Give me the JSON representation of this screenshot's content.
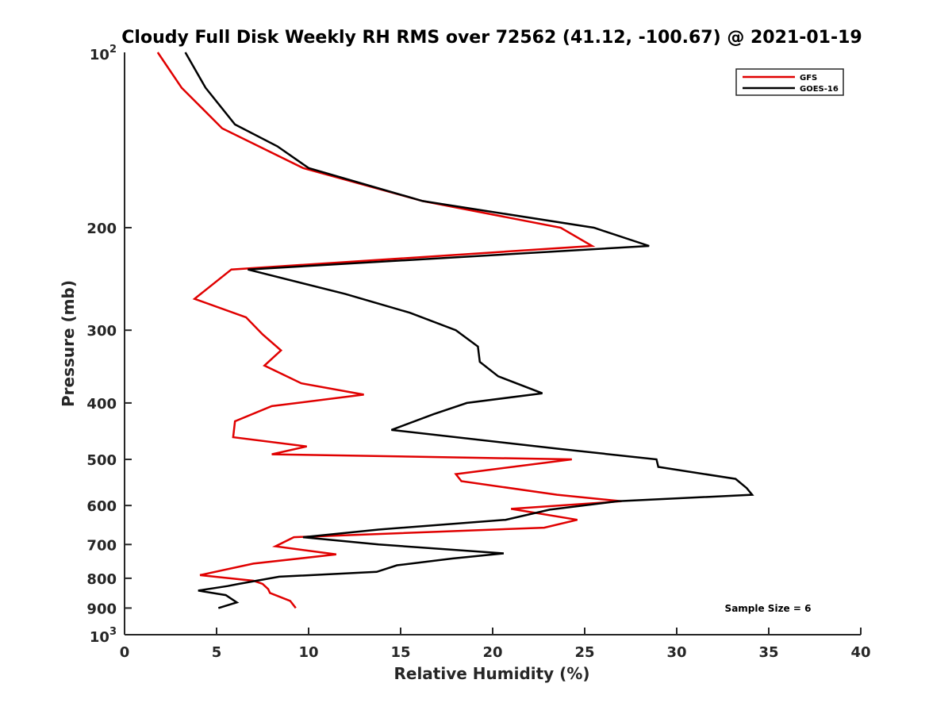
{
  "chart_data": {
    "type": "line",
    "title": "Cloudy Full Disk Weekly RH RMS over 72562 (41.12, -100.67) @ 2021-01-19",
    "xlabel": "Relative Humidity (%)",
    "ylabel": "Pressure (mb)",
    "xlim": [
      0,
      40
    ],
    "ylim": [
      100,
      1000
    ],
    "y_scale": "log",
    "y_reversed": true,
    "grid": false,
    "legend_position": "top-right",
    "x_ticks": [
      0,
      5,
      10,
      15,
      20,
      25,
      30,
      35,
      40
    ],
    "x_tick_labels": [
      "0",
      "5",
      "10",
      "15",
      "20",
      "25",
      "30",
      "35",
      "40"
    ],
    "y_ticks": [
      200,
      300,
      400,
      500,
      600,
      700,
      800,
      900
    ],
    "y_tick_labels": [
      "200",
      "300",
      "400",
      "500",
      "600",
      "700",
      "800",
      "900"
    ],
    "y_end_labels": [
      {
        "value": 100,
        "base": "10",
        "exp": "2"
      },
      {
        "value": 1000,
        "base": "10",
        "exp": "3"
      }
    ],
    "annotation": "Sample Size = 6",
    "series": [
      {
        "name": "GFS",
        "color": "#e00000",
        "points": [
          [
            1.8,
            100
          ],
          [
            3.1,
            115
          ],
          [
            5.3,
            135
          ],
          [
            9.7,
            158
          ],
          [
            16.2,
            180
          ],
          [
            23.7,
            200
          ],
          [
            25.4,
            215
          ],
          [
            5.8,
            236
          ],
          [
            3.8,
            265
          ],
          [
            6.6,
            285
          ],
          [
            7.5,
            305
          ],
          [
            8.5,
            325
          ],
          [
            7.6,
            345
          ],
          [
            9.6,
            370
          ],
          [
            13.0,
            387
          ],
          [
            8.0,
            405
          ],
          [
            6.0,
            430
          ],
          [
            5.9,
            458
          ],
          [
            9.9,
            475
          ],
          [
            8.0,
            490
          ],
          [
            24.3,
            500
          ],
          [
            18.0,
            530
          ],
          [
            18.3,
            545
          ],
          [
            23.5,
            575
          ],
          [
            27.0,
            590
          ],
          [
            21.0,
            608
          ],
          [
            24.6,
            635
          ],
          [
            22.8,
            655
          ],
          [
            9.2,
            680
          ],
          [
            8.2,
            705
          ],
          [
            11.5,
            728
          ],
          [
            7.0,
            755
          ],
          [
            4.1,
            790
          ],
          [
            7.0,
            808
          ],
          [
            7.5,
            818
          ],
          [
            7.8,
            835
          ],
          [
            7.9,
            848
          ],
          [
            9.0,
            875
          ],
          [
            9.3,
            900
          ]
        ]
      },
      {
        "name": "GOES-16",
        "color": "#000000",
        "points": [
          [
            3.3,
            100
          ],
          [
            4.4,
            115
          ],
          [
            6.0,
            133
          ],
          [
            8.3,
            145
          ],
          [
            10.0,
            158
          ],
          [
            16.2,
            180
          ],
          [
            25.5,
            200
          ],
          [
            28.5,
            215
          ],
          [
            6.7,
            236
          ],
          [
            12.0,
            260
          ],
          [
            15.5,
            280
          ],
          [
            18.0,
            300
          ],
          [
            19.2,
            320
          ],
          [
            19.3,
            340
          ],
          [
            20.3,
            360
          ],
          [
            22.7,
            385
          ],
          [
            18.6,
            400
          ],
          [
            16.8,
            418
          ],
          [
            14.5,
            445
          ],
          [
            23.7,
            480
          ],
          [
            28.9,
            500
          ],
          [
            29.0,
            515
          ],
          [
            33.2,
            540
          ],
          [
            33.8,
            560
          ],
          [
            34.1,
            575
          ],
          [
            26.8,
            590
          ],
          [
            23.1,
            610
          ],
          [
            20.7,
            635
          ],
          [
            13.8,
            660
          ],
          [
            9.7,
            680
          ],
          [
            13.8,
            700
          ],
          [
            20.6,
            725
          ],
          [
            17.8,
            740
          ],
          [
            14.8,
            760
          ],
          [
            13.7,
            780
          ],
          [
            8.4,
            795
          ],
          [
            6.2,
            818
          ],
          [
            5.6,
            825
          ],
          [
            4.0,
            840
          ],
          [
            5.5,
            855
          ],
          [
            6.1,
            880
          ],
          [
            5.1,
            900
          ]
        ]
      }
    ]
  }
}
